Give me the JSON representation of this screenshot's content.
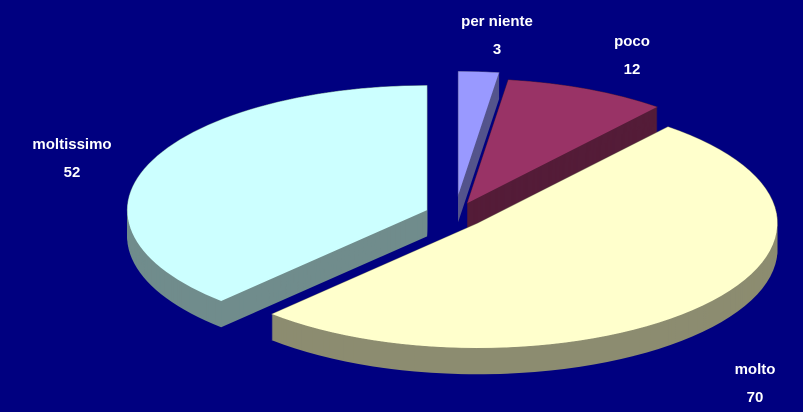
{
  "chart_data": {
    "type": "pie3d",
    "categories": [
      "per niente",
      "poco",
      "molto",
      "moltissimo"
    ],
    "values": [
      3,
      12,
      70,
      52
    ],
    "colors": [
      "#9999ff",
      "#993366",
      "#ffffcc",
      "#ccffff"
    ],
    "background": "#000080"
  }
}
